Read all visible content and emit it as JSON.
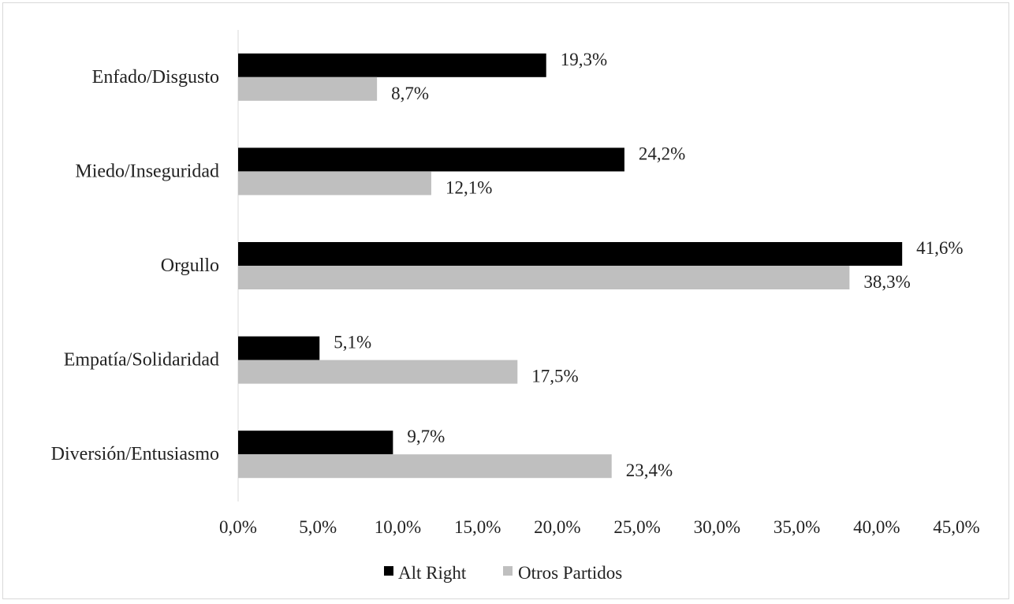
{
  "chart_data": {
    "type": "bar",
    "orientation": "horizontal",
    "categories": [
      "Enfado/Disgusto",
      "Miedo/Inseguridad",
      "Orgullo",
      "Empatía/Solidaridad",
      "Diversión/Entusiasmo"
    ],
    "series": [
      {
        "name": "Alt Right",
        "values": [
          19.3,
          24.2,
          41.6,
          5.1,
          9.7
        ],
        "labels": [
          "19,3%",
          "24,2%",
          "41,6%",
          "5,1%",
          "9,7%"
        ],
        "color": "#000000"
      },
      {
        "name": "Otros Partidos",
        "values": [
          8.7,
          12.1,
          38.3,
          17.5,
          23.4
        ],
        "labels": [
          "8,7%",
          "12,1%",
          "38,3%",
          "17,5%",
          "23,4%"
        ],
        "color": "#bfbfbf"
      }
    ],
    "x_ticks": [
      "0,0%",
      "5,0%",
      "10,0%",
      "15,0%",
      "20,0%",
      "25,0%",
      "30,0%",
      "35,0%",
      "40,0%",
      "45,0%"
    ],
    "xlim": [
      0,
      45
    ],
    "grid": false,
    "legend_position": "bottom",
    "title": "",
    "xlabel": "",
    "ylabel": ""
  }
}
